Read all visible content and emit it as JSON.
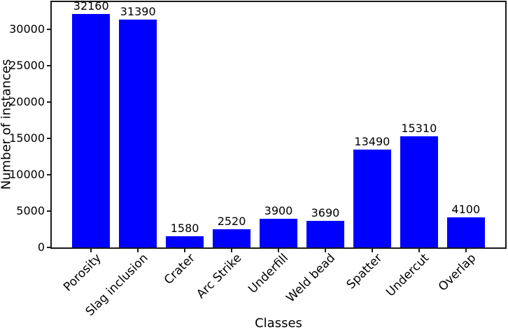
{
  "figure": {
    "background": "#ffffff"
  },
  "chart_data": {
    "type": "bar",
    "title": "",
    "categories": [
      "Porosity",
      "Slag inclusion",
      "Crater",
      "Arc Strike",
      "Underfill",
      "Weld bead",
      "Spatter",
      "Undercut",
      "Overlap"
    ],
    "values": [
      32160,
      31390,
      1580,
      2520,
      3900,
      3690,
      13490,
      15310,
      4100
    ],
    "xlabel": "Classes",
    "ylabel": "Number of instances",
    "ylim": [
      0,
      33750
    ],
    "yticks": [
      0,
      5000,
      10000,
      15000,
      20000,
      25000,
      30000
    ],
    "x_tick_rotation_deg": 45,
    "bar_labels_shown": true,
    "grid": false,
    "legend": null,
    "bar_color": "#0000ff",
    "axis_color": "#1a1a1a",
    "text_color": "#000000"
  }
}
